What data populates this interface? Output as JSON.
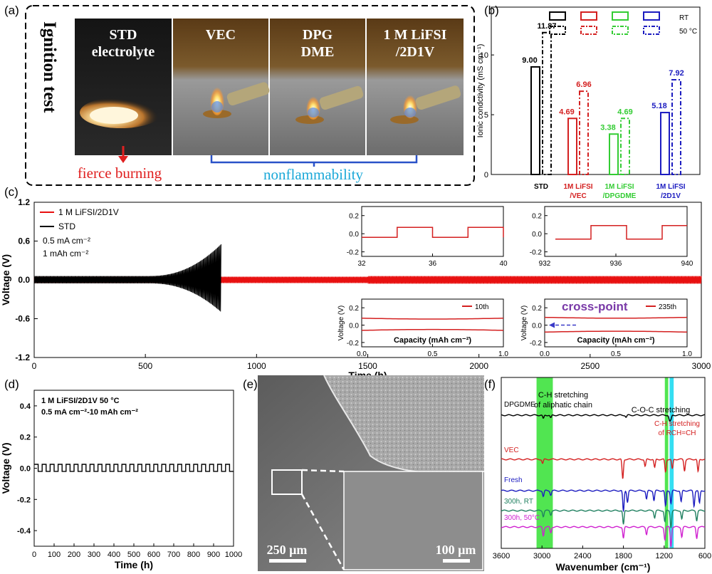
{
  "panels": {
    "a": "(a)",
    "b": "(b)",
    "c": "(c)",
    "d": "(d)",
    "e": "(e)",
    "f": "(f)"
  },
  "panel_a": {
    "title": "Ignition test",
    "photos": [
      {
        "line1": "STD",
        "line2": "electrolyte"
      },
      {
        "line1": "VEC",
        "line2": ""
      },
      {
        "line1": "DPG",
        "line2": "DME"
      },
      {
        "line1": "1 M LiFSI",
        "line2": "/2D1V"
      }
    ],
    "fierce": "fierce burning",
    "nonflam": "nonflammability",
    "colors": {
      "fierce": "#e02020",
      "nonflam": "#1aa8d8",
      "bracket": "#2a52c8"
    }
  },
  "panel_e": {
    "scale1": "250 µm",
    "scale2": "100 µm"
  },
  "chart_data": [
    {
      "id": "b",
      "type": "bar",
      "ylabel": "Ionic condctivity (mS cm⁻¹)",
      "ylim": [
        0,
        14
      ],
      "yticks": [
        0,
        5,
        10
      ],
      "categories": [
        "STD",
        "1M LiFSI\n/VEC",
        "1M LiFSI\n/DPGDME",
        "1M LiFSI\n/2D1V"
      ],
      "category_colors": [
        "#000000",
        "#d42020",
        "#33cc33",
        "#1c1cc0"
      ],
      "series": [
        {
          "name": "RT",
          "values": [
            9.0,
            4.69,
            3.38,
            5.18
          ],
          "labels": [
            "9.00",
            "4.69",
            "3.38",
            "5.18"
          ]
        },
        {
          "name": "50 °C",
          "values": [
            11.87,
            6.96,
            4.69,
            7.92
          ],
          "labels": [
            "11.87",
            "6.96",
            "4.69",
            "7.92"
          ]
        }
      ]
    },
    {
      "id": "c",
      "type": "line",
      "xlabel": "Time (h)",
      "ylabel": "Voltage (V)",
      "xlim": [
        0,
        3000
      ],
      "ylim": [
        -1.2,
        1.2
      ],
      "xticks": [
        0,
        500,
        1000,
        1500,
        2000,
        2500,
        3000
      ],
      "yticks": [
        -1.2,
        -0.6,
        0.0,
        0.6,
        1.2
      ],
      "legend": [
        "1 M LiFSI/2D1V",
        "STD"
      ],
      "annotations": [
        "0.5 mA cm⁻²",
        "1 mAh cm⁻²"
      ],
      "series": [
        {
          "name": "1 M LiFSI/2D1V",
          "color": "#e81010",
          "x_range": [
            0,
            3000
          ],
          "amplitude": [
            0.05,
            0.08
          ]
        },
        {
          "name": "STD",
          "color": "#000000",
          "x_range": [
            0,
            840
          ],
          "amplitude": [
            0.06,
            0.55
          ]
        }
      ],
      "insets": [
        {
          "xlim": [
            32,
            40
          ],
          "ylim": [
            -0.25,
            0.3
          ],
          "xticks": [
            32,
            36,
            40
          ],
          "yticks": [
            -0.2,
            0.0,
            0.2
          ],
          "square_wave": {
            "start": 32,
            "period": 4,
            "amp": 0.08
          }
        },
        {
          "xlim": [
            932,
            940
          ],
          "ylim": [
            -0.25,
            0.3
          ],
          "xticks": [
            932,
            936,
            940
          ],
          "yticks": [
            -0.2,
            0.0,
            0.2
          ],
          "square_wave": {
            "start": 932.6,
            "period": 4,
            "amp": 0.09
          }
        },
        {
          "xlabel": "Capacity (mAh cm⁻²)",
          "ylabel": "Voltage (V)",
          "xlim": [
            0,
            1
          ],
          "ylim": [
            -0.25,
            0.3
          ],
          "xticks": [
            "0.0",
            "0.5",
            "1.0"
          ],
          "yticks": [
            -0.2,
            0.0,
            0.2
          ],
          "legend": "10th",
          "charge": 0.08,
          "discharge": -0.06
        },
        {
          "xlabel": "Capacity (mAh cm⁻²)",
          "ylabel": "Voltage (V)",
          "xlim": [
            0,
            1
          ],
          "ylim": [
            -0.25,
            0.3
          ],
          "xticks": [
            "0.0",
            "0.5",
            "1.0"
          ],
          "yticks": [
            -0.2,
            0.0,
            0.2
          ],
          "legend": "235th",
          "annotation": "cross-point",
          "charge": 0.09,
          "discharge": -0.08
        }
      ]
    },
    {
      "id": "d",
      "type": "line",
      "xlabel": "Time (h)",
      "ylabel": "Voltage (V)",
      "xlim": [
        0,
        1000
      ],
      "ylim": [
        -0.5,
        0.5
      ],
      "xticks": [
        0,
        100,
        200,
        300,
        400,
        500,
        600,
        700,
        800,
        900,
        1000
      ],
      "yticks": [
        -0.4,
        -0.2,
        0.0,
        0.2,
        0.4
      ],
      "annotations": [
        "1 M LiFSI/2D1V   50 °C",
        "0.5 mA cm⁻²-10 mAh cm⁻²"
      ],
      "series": [
        {
          "name": "1 M LiFSI/2D1V",
          "color": "#000000",
          "period": 40,
          "amp": 0.025
        }
      ]
    },
    {
      "id": "f",
      "type": "line",
      "xlabel": "Wavenumber (cm⁻¹)",
      "xlim": [
        3600,
        600
      ],
      "xticks": [
        3600,
        3000,
        2400,
        1800,
        1200,
        600
      ],
      "annotations": [
        "C-H stretching\nof aliphatic chain",
        "C-O-C stretching",
        "C-H stretching\nof RCH=CH"
      ],
      "highlight_bands": [
        {
          "from": 3080,
          "to": 2840,
          "color": "#33e033"
        },
        {
          "from": 1190,
          "to": 1140,
          "color": "#33e033"
        },
        {
          "from": 1120,
          "to": 1060,
          "color": "#10d8f0"
        }
      ],
      "series": [
        {
          "name": "DPGDME",
          "color": "#000000",
          "baseline": 0
        },
        {
          "name": "VEC",
          "color": "#d42020",
          "baseline": 1
        },
        {
          "name": "Fresh",
          "color": "#1c1cc0",
          "baseline": 2
        },
        {
          "name": "300h, RT",
          "color": "#208060",
          "baseline": 3
        },
        {
          "name": "300h, 50°C",
          "color": "#d020d0",
          "baseline": 4
        }
      ]
    }
  ]
}
